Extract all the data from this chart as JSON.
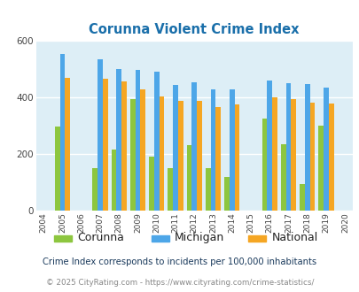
{
  "title": "Corunna Violent Crime Index",
  "years": [
    2004,
    2005,
    2006,
    2007,
    2008,
    2009,
    2010,
    2011,
    2012,
    2013,
    2014,
    2015,
    2016,
    2017,
    2018,
    2019,
    2020
  ],
  "corunna": [
    null,
    295,
    null,
    150,
    215,
    395,
    190,
    148,
    230,
    148,
    118,
    null,
    325,
    235,
    93,
    300,
    null
  ],
  "michigan": [
    null,
    555,
    null,
    535,
    500,
    498,
    492,
    443,
    453,
    428,
    428,
    null,
    460,
    450,
    447,
    435,
    null
  ],
  "national": [
    null,
    469,
    null,
    467,
    455,
    429,
    404,
    387,
    387,
    367,
    375,
    null,
    400,
    394,
    382,
    379,
    null
  ],
  "bar_width": 0.27,
  "ylim": [
    0,
    600
  ],
  "yticks": [
    0,
    200,
    400,
    600
  ],
  "color_corunna": "#8dc63f",
  "color_michigan": "#4da6e8",
  "color_national": "#f5a623",
  "bg_color": "#ddeef6",
  "grid_color": "#ffffff",
  "title_color": "#1a6faa",
  "legend_labels": [
    "Corunna",
    "Michigan",
    "National"
  ],
  "footnote1": "Crime Index corresponds to incidents per 100,000 inhabitants",
  "footnote2": "© 2025 CityRating.com - https://www.cityrating.com/crime-statistics/",
  "footnote1_color": "#1a3a5c",
  "footnote2_color": "#888888"
}
